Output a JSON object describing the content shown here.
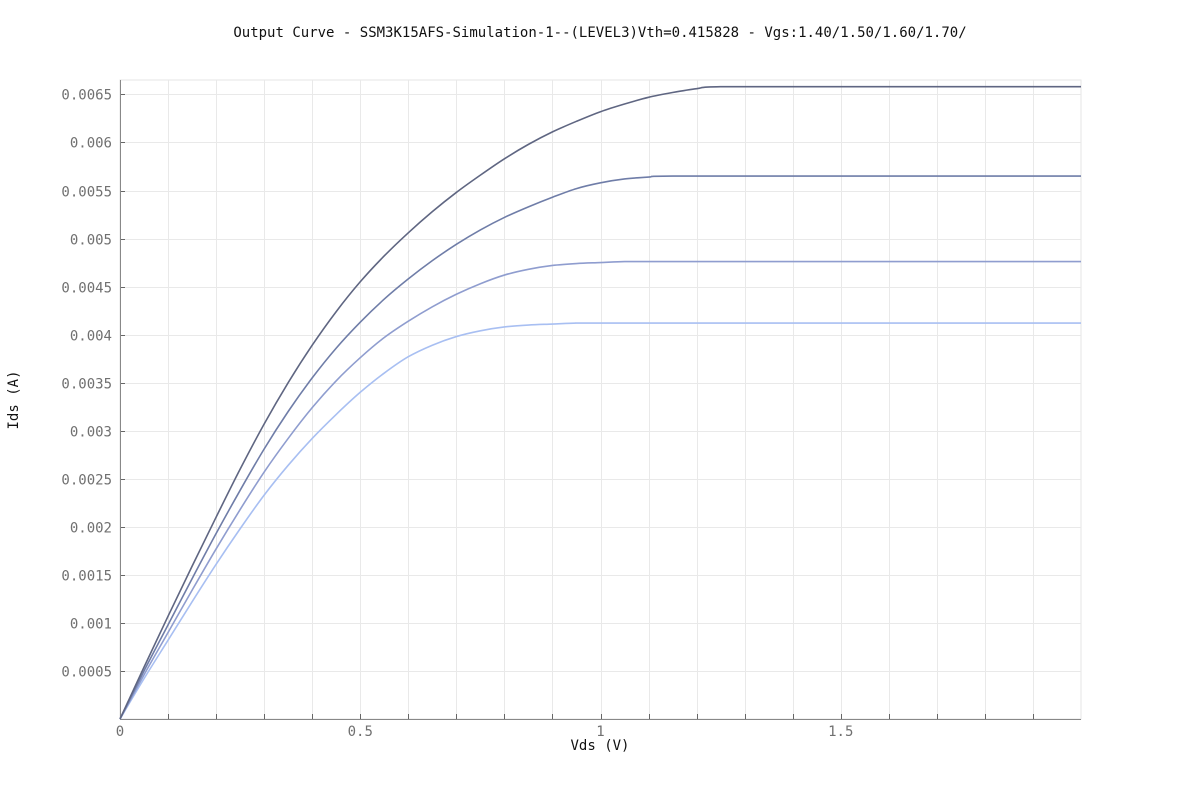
{
  "chart_data": {
    "type": "line",
    "title": "Output Curve - SSM3K15AFS-Simulation-1--(LEVEL3)Vth=0.415828 - Vgs:1.40/1.50/1.60/1.70/",
    "xlabel": "Vds (V)",
    "ylabel": "Ids (A)",
    "xlim": [
      0,
      2
    ],
    "ylim": [
      0,
      0.00665
    ],
    "x_ticks": [
      0,
      0.5,
      1,
      1.5
    ],
    "x_tick_labels": [
      "0",
      "0.5",
      "1",
      "1.5"
    ],
    "x_minor_step": 0.1,
    "y_ticks": [
      0.0005,
      0.001,
      0.0015,
      0.002,
      0.0025,
      0.003,
      0.0035,
      0.004,
      0.0045,
      0.005,
      0.0055,
      0.006,
      0.0065
    ],
    "y_tick_labels": [
      "0.0005",
      "0.001",
      "0.0015",
      "0.002",
      "0.0025",
      "0.003",
      "0.0035",
      "0.004",
      "0.0045",
      "0.005",
      "0.0055",
      "0.006",
      "0.0065"
    ],
    "grid": true,
    "legend": "none",
    "series": [
      {
        "color": "#a8bff2",
        "x": [
          0,
          0.05,
          0.1,
          0.15,
          0.2,
          0.25,
          0.3,
          0.35,
          0.4,
          0.45,
          0.5,
          0.55,
          0.6,
          0.65,
          0.7,
          0.75,
          0.8,
          0.85,
          0.9,
          0.95,
          1.0,
          1.5,
          2.0
        ],
        "y": [
          0,
          0.00042,
          0.00082,
          0.00122,
          0.00161,
          0.00198,
          0.00233,
          0.00264,
          0.00292,
          0.00317,
          0.0034,
          0.0036,
          0.00377,
          0.00389,
          0.00398,
          0.00404,
          0.00408,
          0.0041,
          0.00411,
          0.00412,
          0.00412,
          0.00412,
          0.00412
        ]
      },
      {
        "color": "#8f9dcf",
        "x": [
          0,
          0.05,
          0.1,
          0.15,
          0.2,
          0.25,
          0.3,
          0.35,
          0.4,
          0.45,
          0.5,
          0.55,
          0.6,
          0.65,
          0.7,
          0.75,
          0.8,
          0.85,
          0.9,
          0.95,
          1.0,
          1.05,
          1.1,
          1.5,
          2.0
        ],
        "y": [
          0,
          0.00046,
          0.0009,
          0.00134,
          0.00177,
          0.00218,
          0.00257,
          0.00292,
          0.00324,
          0.00352,
          0.00376,
          0.00397,
          0.00414,
          0.00429,
          0.00442,
          0.00453,
          0.00462,
          0.00468,
          0.00472,
          0.00474,
          0.00475,
          0.00476,
          0.00476,
          0.00476,
          0.00476
        ]
      },
      {
        "color": "#6f7da8",
        "x": [
          0,
          0.05,
          0.1,
          0.15,
          0.2,
          0.25,
          0.3,
          0.35,
          0.4,
          0.45,
          0.5,
          0.55,
          0.6,
          0.65,
          0.7,
          0.75,
          0.8,
          0.85,
          0.9,
          0.95,
          1.0,
          1.05,
          1.1,
          1.15,
          1.5,
          2.0
        ],
        "y": [
          0,
          0.0005,
          0.00098,
          0.00146,
          0.00193,
          0.00238,
          0.00281,
          0.0032,
          0.00355,
          0.00386,
          0.00413,
          0.00437,
          0.00458,
          0.00477,
          0.00494,
          0.00509,
          0.00522,
          0.00533,
          0.00543,
          0.00552,
          0.00558,
          0.00562,
          0.00564,
          0.00565,
          0.00565,
          0.00565
        ]
      },
      {
        "color": "#5f6682",
        "x": [
          0,
          0.05,
          0.1,
          0.15,
          0.2,
          0.25,
          0.3,
          0.35,
          0.4,
          0.45,
          0.5,
          0.55,
          0.6,
          0.65,
          0.7,
          0.75,
          0.8,
          0.85,
          0.9,
          0.95,
          1.0,
          1.05,
          1.1,
          1.15,
          1.2,
          1.25,
          1.5,
          2.0
        ],
        "y": [
          0,
          0.00054,
          0.00107,
          0.00159,
          0.0021,
          0.0026,
          0.00307,
          0.0035,
          0.00389,
          0.00424,
          0.00455,
          0.00482,
          0.00506,
          0.00528,
          0.00548,
          0.00566,
          0.00583,
          0.00598,
          0.00611,
          0.00622,
          0.00632,
          0.0064,
          0.00647,
          0.00652,
          0.00656,
          0.00658,
          0.00658,
          0.00658
        ]
      }
    ]
  }
}
